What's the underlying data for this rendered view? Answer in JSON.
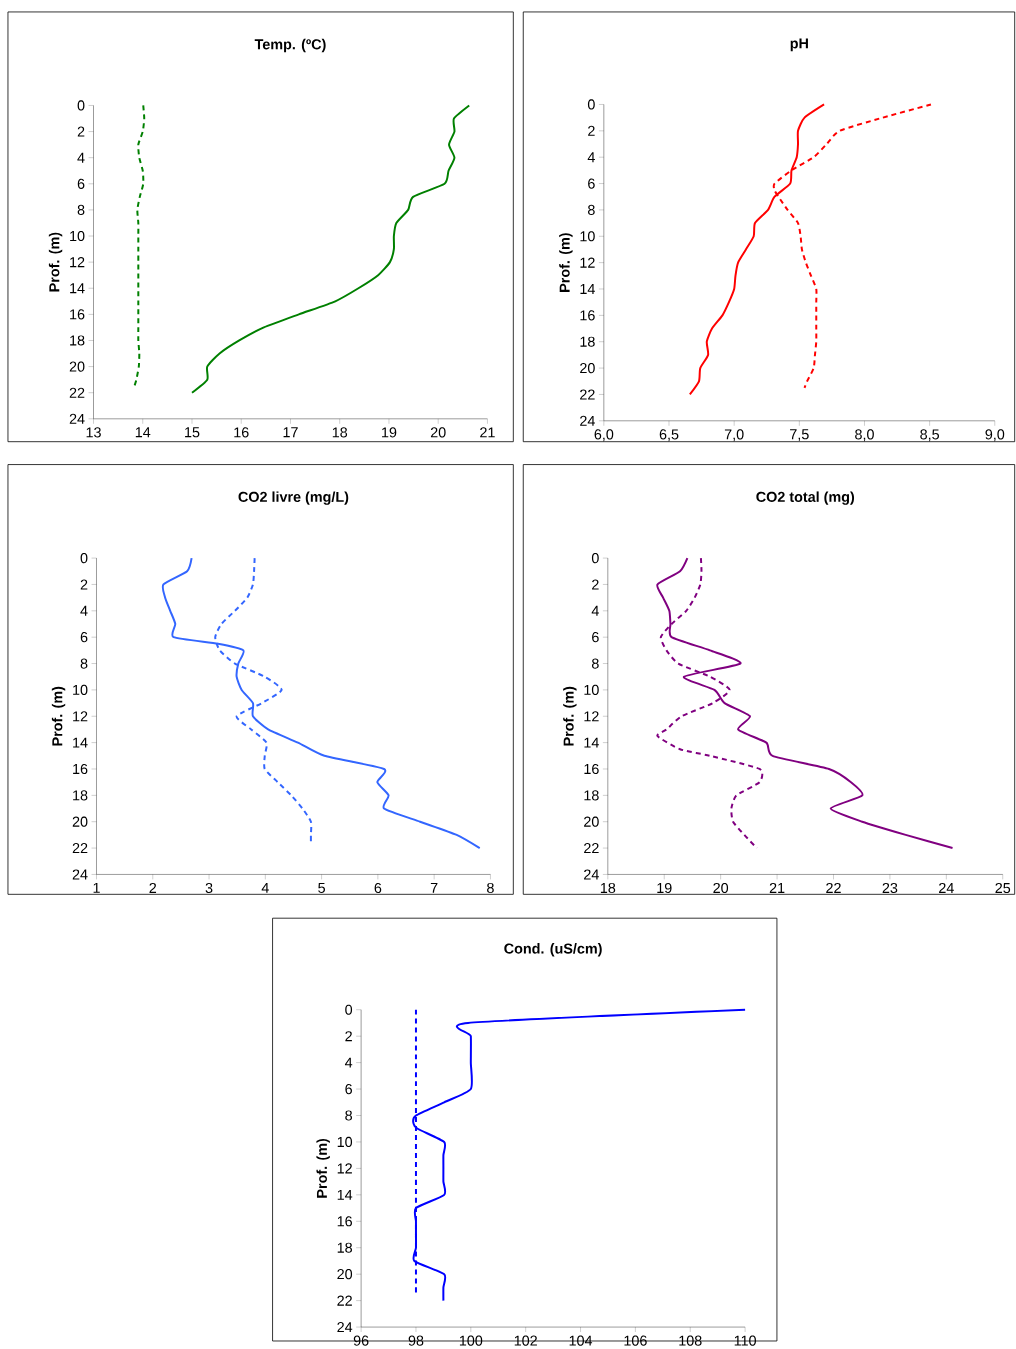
{
  "chart_data": [
    {
      "type": "line",
      "title": "Temp. (ºC)",
      "ylabel": "Prof. (m)",
      "xlim": [
        13,
        21
      ],
      "xticks": [
        13,
        14,
        15,
        16,
        17,
        18,
        19,
        20,
        21
      ],
      "ylim": [
        24,
        0
      ],
      "yticks": [
        0,
        2,
        4,
        6,
        8,
        10,
        12,
        14,
        16,
        18,
        20,
        22,
        24
      ],
      "series": [
        {
          "color": "#008000",
          "line_style": "solid",
          "x": [
            20.63,
            20.32,
            20.33,
            20.22,
            20.33,
            20.21,
            20.13,
            19.49,
            19.39,
            19.15,
            19.1,
            19.1,
            19.02,
            18.78,
            18.38,
            17.91,
            17.17,
            16.46,
            15.96,
            15.56,
            15.31,
            15.31,
            15.0
          ],
          "values": [
            0,
            1,
            2,
            3,
            4,
            5,
            6,
            7,
            8,
            9,
            10,
            11,
            12,
            13,
            14,
            15,
            16,
            17,
            18,
            19,
            20,
            21,
            22
          ]
        },
        {
          "color": "#008000",
          "line_style": "dashed",
          "x": [
            14.01,
            14.03,
            14.0,
            13.91,
            13.93,
            14.0,
            14.01,
            13.94,
            13.89,
            13.91,
            13.91,
            13.91,
            13.91,
            13.91,
            13.91,
            13.91,
            13.91,
            13.91,
            13.91,
            13.93,
            13.92,
            13.87,
            13.83
          ],
          "values": [
            0,
            1,
            2,
            3,
            4,
            5,
            6,
            7,
            8,
            9,
            10,
            11,
            12,
            13,
            14,
            15,
            16,
            17,
            18,
            19,
            20,
            21,
            21.5
          ]
        }
      ]
    },
    {
      "type": "line",
      "title": "pH",
      "ylabel": "Prof. (m)",
      "xlim": [
        6.0,
        9.0
      ],
      "xticks": [
        {
          "value": 6.0,
          "label": "6,0"
        },
        {
          "value": 6.5,
          "label": "6,5"
        },
        {
          "value": 7.0,
          "label": "7,0"
        },
        {
          "value": 7.5,
          "label": "7,5"
        },
        {
          "value": 8.0,
          "label": "8,0"
        },
        {
          "value": 8.5,
          "label": "8,5"
        },
        {
          "value": 9.0,
          "label": "9,0"
        }
      ],
      "ylim": [
        24,
        0
      ],
      "yticks": [
        0,
        2,
        4,
        6,
        8,
        10,
        12,
        14,
        16,
        18,
        20,
        22,
        24
      ],
      "series": [
        {
          "color": "#ff0000",
          "line_style": "solid",
          "x": [
            7.69,
            7.54,
            7.49,
            7.49,
            7.48,
            7.44,
            7.43,
            7.31,
            7.26,
            7.16,
            7.15,
            7.09,
            7.03,
            7.01,
            7.0,
            6.96,
            6.91,
            6.83,
            6.79,
            6.8,
            6.74,
            6.73,
            6.66
          ],
          "values": [
            0,
            1,
            2,
            3,
            4,
            5,
            6,
            7,
            8,
            9,
            10,
            11,
            12,
            13,
            14,
            15,
            16,
            17,
            18,
            19,
            20,
            21,
            22
          ]
        },
        {
          "color": "#ff0000",
          "line_style": "dashed",
          "x": [
            8.51,
            8.14,
            7.81,
            7.71,
            7.61,
            7.44,
            7.31,
            7.31,
            7.34,
            7.41,
            7.49,
            7.51,
            7.52,
            7.55,
            7.59,
            7.63,
            7.63,
            7.63,
            7.63,
            7.63,
            7.62,
            7.61,
            7.56,
            7.54
          ],
          "values": [
            0,
            1,
            2,
            3,
            4,
            5,
            6,
            6.5,
            7,
            8,
            9,
            10,
            11,
            12,
            13,
            14,
            15,
            16,
            17,
            18,
            19,
            20,
            21,
            21.5
          ]
        }
      ]
    },
    {
      "type": "line",
      "title": "CO2 livre (mg/L)",
      "ylabel": "Prof. (m)",
      "xlim": [
        1,
        8
      ],
      "xticks": [
        1,
        2,
        3,
        4,
        5,
        6,
        7,
        8
      ],
      "ylim": [
        24,
        0
      ],
      "yticks": [
        0,
        2,
        4,
        6,
        8,
        10,
        12,
        14,
        16,
        18,
        20,
        22,
        24
      ],
      "series": [
        {
          "color": "#3366ff",
          "line_style": "solid",
          "x": [
            2.69,
            2.61,
            2.19,
            2.22,
            2.31,
            2.4,
            2.37,
            3.16,
            3.61,
            3.52,
            3.49,
            3.58,
            3.78,
            3.78,
            4.05,
            4.58,
            5.05,
            6.11,
            5.99,
            6.19,
            6.11,
            6.75,
            7.4,
            7.81
          ],
          "values": [
            0,
            1,
            2,
            3,
            4,
            5,
            6,
            6.5,
            7,
            8,
            9,
            10,
            11,
            12,
            13,
            14,
            15,
            16,
            17,
            18,
            19,
            20,
            21,
            22
          ]
        },
        {
          "color": "#3366ff",
          "line_style": "dashed",
          "x": [
            3.81,
            3.8,
            3.78,
            3.68,
            3.46,
            3.22,
            3.11,
            3.19,
            3.46,
            3.99,
            4.29,
            3.94,
            3.49,
            3.75,
            4.02,
            3.99,
            3.99,
            4.22,
            4.46,
            4.66,
            4.81,
            4.81,
            4.81
          ],
          "values": [
            0,
            1,
            2,
            3,
            4,
            5,
            6,
            7,
            8,
            9,
            10,
            11,
            12,
            13,
            14,
            15,
            16,
            17,
            18,
            19,
            20,
            21,
            21.5
          ]
        }
      ]
    },
    {
      "type": "line",
      "title": "CO2 total (mg)",
      "ylabel": "Prof. (m)",
      "xlim": [
        18,
        25
      ],
      "xticks": [
        18,
        19,
        20,
        21,
        22,
        23,
        24,
        25
      ],
      "ylim": [
        24,
        0
      ],
      "yticks": [
        0,
        2,
        4,
        6,
        8,
        10,
        12,
        14,
        16,
        18,
        20,
        22,
        24
      ],
      "series": [
        {
          "color": "#800080",
          "line_style": "solid",
          "x": [
            19.41,
            19.28,
            18.88,
            18.98,
            19.09,
            19.11,
            19.13,
            19.81,
            20.35,
            19.35,
            19.89,
            20.07,
            20.52,
            20.31,
            20.81,
            20.92,
            21.92,
            22.31,
            22.51,
            21.95,
            22.51,
            23.28,
            24.11
          ],
          "values": [
            0,
            1,
            2,
            3,
            4,
            5,
            6,
            7,
            8,
            9,
            10,
            11,
            12,
            13,
            14,
            15,
            16,
            17,
            18,
            19,
            20,
            21,
            22
          ]
        },
        {
          "color": "#800080",
          "line_style": "dashed",
          "x": [
            19.65,
            19.66,
            19.64,
            19.54,
            19.39,
            19.13,
            18.94,
            19.04,
            19.25,
            19.81,
            20.16,
            19.86,
            19.31,
            19.04,
            18.88,
            19.28,
            19.81,
            20.69,
            20.69,
            20.28,
            20.19,
            20.22,
            20.42,
            20.64
          ],
          "values": [
            0,
            1,
            2,
            3,
            4,
            5,
            6,
            7,
            8,
            9,
            10,
            11,
            12,
            13,
            13.5,
            14.5,
            15,
            16,
            17,
            18,
            19,
            20,
            21,
            22
          ]
        }
      ]
    },
    {
      "type": "line",
      "title": "Cond. (uS/cm)",
      "ylabel": "Prof. (m)",
      "xlim": [
        96,
        110
      ],
      "xticks": [
        96,
        98,
        100,
        102,
        104,
        106,
        108,
        110
      ],
      "ylim": [
        24,
        0
      ],
      "yticks": [
        0,
        2,
        4,
        6,
        8,
        10,
        12,
        14,
        16,
        18,
        20,
        22,
        24
      ],
      "series": [
        {
          "color": "#0000ff",
          "line_style": "solid",
          "x": [
            110,
            99.9,
            100.0,
            100.0,
            100.0,
            99.03,
            98.0,
            97.9,
            98.06,
            99.03,
            99.0,
            99.0,
            99.0,
            99.03,
            98.0,
            98.0,
            98.0,
            98.0,
            97.94,
            99.03,
            99.0,
            99.0
          ],
          "values": [
            0,
            1,
            2,
            4,
            6,
            7,
            8,
            8.5,
            9,
            10,
            11,
            12,
            13,
            14,
            15,
            16,
            17,
            18,
            19,
            20,
            21,
            22
          ]
        },
        {
          "color": "#0000ff",
          "line_style": "dashed",
          "x": [
            98,
            98
          ],
          "values": [
            0,
            21.5
          ]
        }
      ]
    }
  ]
}
